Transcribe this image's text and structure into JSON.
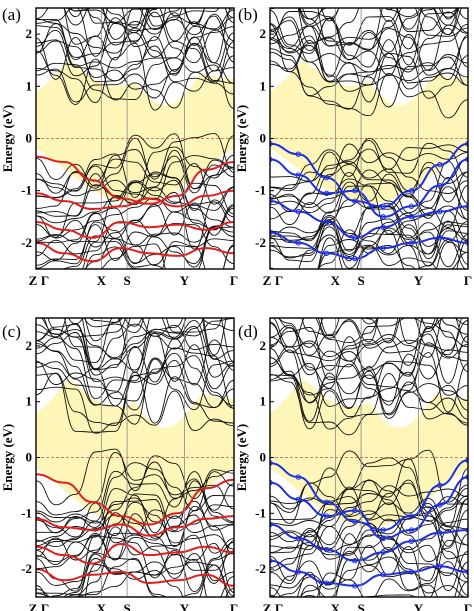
{
  "colors": {
    "gap_fill": "#fdf6b8",
    "bands": "#111111",
    "fermi_line": "#c0504d",
    "highlight_red": "#e01e1e",
    "highlight_blue": "#1d2fe0",
    "kpoint_line": "#888888",
    "frame": "#000000"
  },
  "chart_data": [
    {
      "type": "line",
      "panel_label": "(a)",
      "ylabel": "Energy (eV)",
      "ylim": [
        -2.5,
        2.5
      ],
      "yticks": [
        "2",
        "1",
        "0",
        "-1",
        "-2"
      ],
      "ytick_values": [
        2,
        1,
        0,
        -1,
        -2
      ],
      "kpoints": [
        "Z",
        "Γ",
        "X",
        "S",
        "Y",
        "Γ"
      ],
      "kpoint_positions": [
        0,
        0.02,
        0.33,
        0.46,
        0.75,
        1.0
      ],
      "fermi_level": 0,
      "gap_region": {
        "cbm_eV": 0.85,
        "vbm_eV": -0.05
      },
      "highlight_color": "red",
      "series": [
        {
          "values": [
            -0.35,
            -0.45,
            -0.8,
            -1.15,
            -1.25,
            -1.1,
            -0.6,
            -0.45
          ]
        },
        {
          "values": [
            -1.05,
            -1.2,
            -1.35,
            -1.3,
            -1.15,
            -1.3,
            -1.1,
            -1.0
          ]
        },
        {
          "values": [
            -1.6,
            -1.75,
            -1.9,
            -1.6,
            -1.7,
            -1.65,
            -1.75,
            -1.6
          ]
        },
        {
          "values": [
            -2.0,
            -2.2,
            -2.35,
            -2.1,
            -2.2,
            -2.25,
            -2.1,
            -2.2
          ]
        }
      ]
    },
    {
      "type": "line",
      "panel_label": "(b)",
      "ylabel": "Energy (eV)",
      "ylim": [
        -2.5,
        2.5
      ],
      "yticks": [
        "2",
        "1",
        "0",
        "-1",
        "-2"
      ],
      "ytick_values": [
        2,
        1,
        0,
        -1,
        -2
      ],
      "kpoints": [
        "Z",
        "Γ",
        "X",
        "S",
        "Y",
        "Γ"
      ],
      "kpoint_positions": [
        0,
        0.02,
        0.33,
        0.46,
        0.75,
        1.0
      ],
      "fermi_level": 0,
      "gap_region": {
        "cbm_eV": 0.85,
        "vbm_eV": -0.05
      },
      "highlight_color": "blue",
      "series": [
        {
          "values": [
            -0.1,
            -0.3,
            -0.75,
            -1.2,
            -1.3,
            -1.0,
            -0.5,
            -0.1
          ]
        },
        {
          "values": [
            -0.4,
            -0.7,
            -1.05,
            -1.0,
            -1.5,
            -1.3,
            -0.9,
            -0.4
          ]
        },
        {
          "values": [
            -1.2,
            -1.4,
            -1.6,
            -1.9,
            -1.7,
            -1.5,
            -1.4,
            -1.3
          ]
        },
        {
          "values": [
            -1.8,
            -2.0,
            -2.2,
            -2.3,
            -2.1,
            -2.0,
            -1.9,
            -2.0
          ]
        }
      ]
    },
    {
      "type": "line",
      "panel_label": "(c)",
      "ylabel": "Energy (eV)",
      "ylim": [
        -2.5,
        2.5
      ],
      "yticks": [
        "2",
        "1",
        "0",
        "-1",
        "-2"
      ],
      "ytick_values": [
        2,
        1,
        0,
        -1,
        -2
      ],
      "kpoints": [
        "Z",
        "Γ",
        "X",
        "S",
        "Y",
        "Γ"
      ],
      "kpoint_positions": [
        0,
        0.02,
        0.33,
        0.46,
        0.75,
        1.0
      ],
      "fermi_level": 0,
      "gap_region": {
        "cbm_eV": 0.75,
        "vbm_eV": -0.05
      },
      "highlight_color": "red",
      "series": [
        {
          "values": [
            -0.3,
            -0.45,
            -0.8,
            -1.05,
            -1.2,
            -1.0,
            -0.55,
            -0.4
          ]
        },
        {
          "values": [
            -1.1,
            -1.25,
            -1.3,
            -1.2,
            -1.4,
            -1.25,
            -1.1,
            -1.05
          ]
        },
        {
          "values": [
            -1.6,
            -1.75,
            -1.9,
            -1.55,
            -1.75,
            -1.7,
            -1.6,
            -1.7
          ]
        },
        {
          "values": [
            -2.0,
            -2.2,
            -2.1,
            -2.05,
            -2.25,
            -2.2,
            -2.1,
            -2.3
          ]
        }
      ]
    },
    {
      "type": "line",
      "panel_label": "(d)",
      "ylabel": "Energy (eV)",
      "ylim": [
        -2.5,
        2.5
      ],
      "yticks": [
        "2",
        "1",
        "0",
        "-1",
        "-2"
      ],
      "ytick_values": [
        2,
        1,
        0,
        -1,
        -2
      ],
      "kpoints": [
        "Z",
        "Γ",
        "X",
        "S",
        "Y",
        "Γ"
      ],
      "kpoint_positions": [
        0,
        0.02,
        0.33,
        0.46,
        0.75,
        1.0
      ],
      "fermi_level": 0,
      "gap_region": {
        "cbm_eV": 0.75,
        "vbm_eV": -0.05
      },
      "highlight_color": "blue",
      "series": [
        {
          "values": [
            -0.1,
            -0.35,
            -0.8,
            -1.15,
            -1.3,
            -1.05,
            -0.5,
            -0.05
          ]
        },
        {
          "values": [
            -0.45,
            -0.75,
            -1.05,
            -0.95,
            -1.45,
            -1.3,
            -0.85,
            -0.35
          ]
        },
        {
          "values": [
            -1.2,
            -1.45,
            -1.65,
            -1.85,
            -1.7,
            -1.5,
            -1.35,
            -1.3
          ]
        },
        {
          "values": [
            -1.85,
            -2.05,
            -2.25,
            -2.3,
            -2.1,
            -2.05,
            -1.95,
            -2.05
          ]
        }
      ]
    }
  ]
}
